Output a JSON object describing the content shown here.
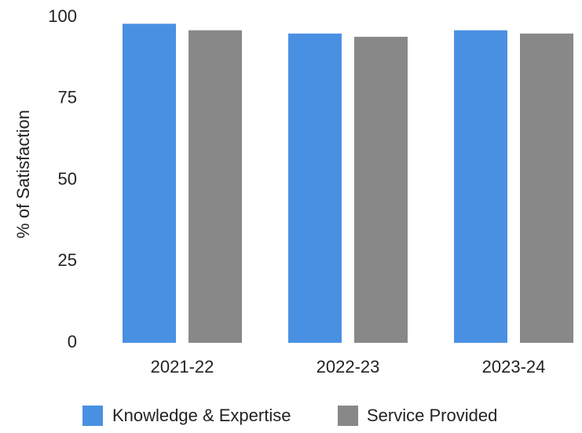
{
  "chart_data": {
    "type": "bar",
    "title": "",
    "xlabel": "",
    "ylabel": "% of Satisfaction",
    "ylim": [
      0,
      100
    ],
    "yticks": [
      0,
      25,
      50,
      75,
      100
    ],
    "categories": [
      "2021-22",
      "2022-23",
      "2023-24"
    ],
    "series": [
      {
        "name": "Knowledge & Expertise",
        "color": "#4a90e2",
        "values": [
          98,
          95,
          96
        ]
      },
      {
        "name": "Service Provided",
        "color": "#888888",
        "values": [
          96,
          94,
          95
        ]
      }
    ],
    "grid": false,
    "legend": "bottom-center"
  }
}
